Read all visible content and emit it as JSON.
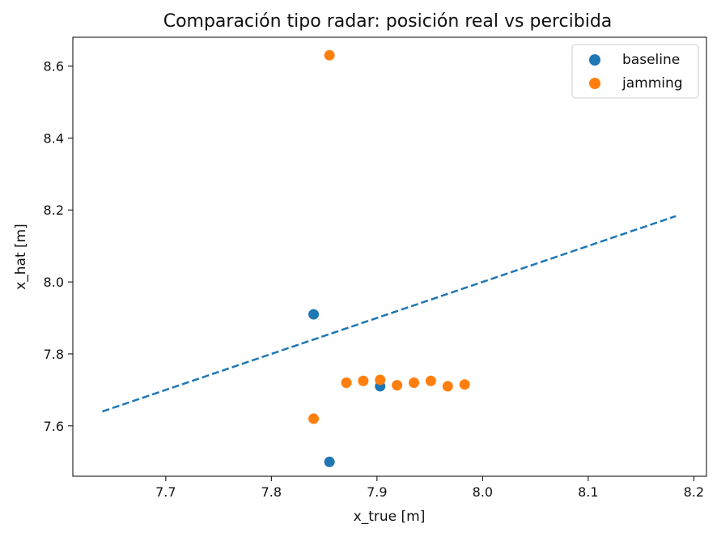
{
  "chart_data": {
    "type": "scatter",
    "title": "Comparación tipo radar: posición real vs percibida",
    "xlabel": "x_true [m]",
    "ylabel": "x_hat [m]",
    "xlim": [
      7.612,
      8.212
    ],
    "ylim": [
      7.46,
      8.68
    ],
    "xticks": [
      7.7,
      7.8,
      7.9,
      8.0,
      8.1,
      8.2
    ],
    "yticks": [
      7.6,
      7.8,
      8.0,
      8.2,
      8.4,
      8.6
    ],
    "grid": false,
    "legend_position": "top-right",
    "series": [
      {
        "name": "baseline",
        "color": "#1f77b4",
        "points": [
          {
            "x": 7.84,
            "y": 7.91
          },
          {
            "x": 7.855,
            "y": 7.5
          },
          {
            "x": 7.903,
            "y": 7.71
          }
        ]
      },
      {
        "name": "jamming",
        "color": "#ff7f0e",
        "points": [
          {
            "x": 7.855,
            "y": 8.63
          },
          {
            "x": 7.84,
            "y": 7.62
          },
          {
            "x": 7.871,
            "y": 7.72
          },
          {
            "x": 7.887,
            "y": 7.725
          },
          {
            "x": 7.903,
            "y": 7.728
          },
          {
            "x": 7.919,
            "y": 7.713
          },
          {
            "x": 7.935,
            "y": 7.72
          },
          {
            "x": 7.951,
            "y": 7.725
          },
          {
            "x": 7.967,
            "y": 7.71
          },
          {
            "x": 7.983,
            "y": 7.715
          }
        ]
      }
    ],
    "reference_line": {
      "style": "dashed",
      "color": "#1f77b4",
      "from": {
        "x": 7.64,
        "y": 7.64
      },
      "to": {
        "x": 8.183,
        "y": 8.183
      }
    }
  }
}
